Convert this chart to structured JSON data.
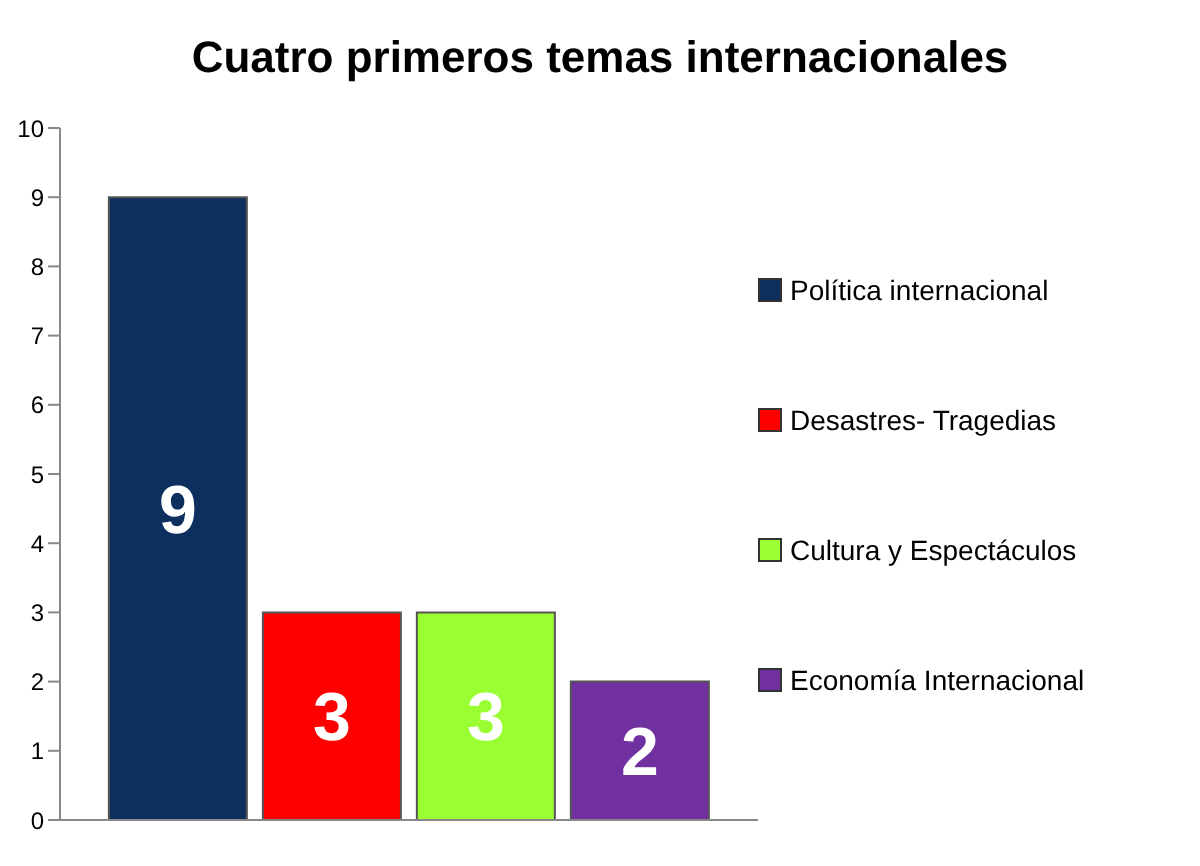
{
  "chart_data": {
    "type": "bar",
    "title": "Cuatro primeros temas internacionales",
    "categories": [
      null
    ],
    "series": [
      {
        "name": "Política internacional",
        "color": "#0c2f5e",
        "values": [
          9
        ]
      },
      {
        "name": "Desastres- Tragedias",
        "color": "#ff0000",
        "values": [
          3
        ]
      },
      {
        "name": "Cultura y Espectáculos",
        "color": "#99ff33",
        "values": [
          3
        ]
      },
      {
        "name": "Economía Internacional",
        "color": "#7030a0",
        "values": [
          2
        ]
      }
    ],
    "ylim": [
      0,
      10
    ],
    "yticks": [
      0,
      1,
      2,
      3,
      4,
      5,
      6,
      7,
      8,
      9,
      10
    ],
    "legend": "right",
    "data_labels": true
  }
}
